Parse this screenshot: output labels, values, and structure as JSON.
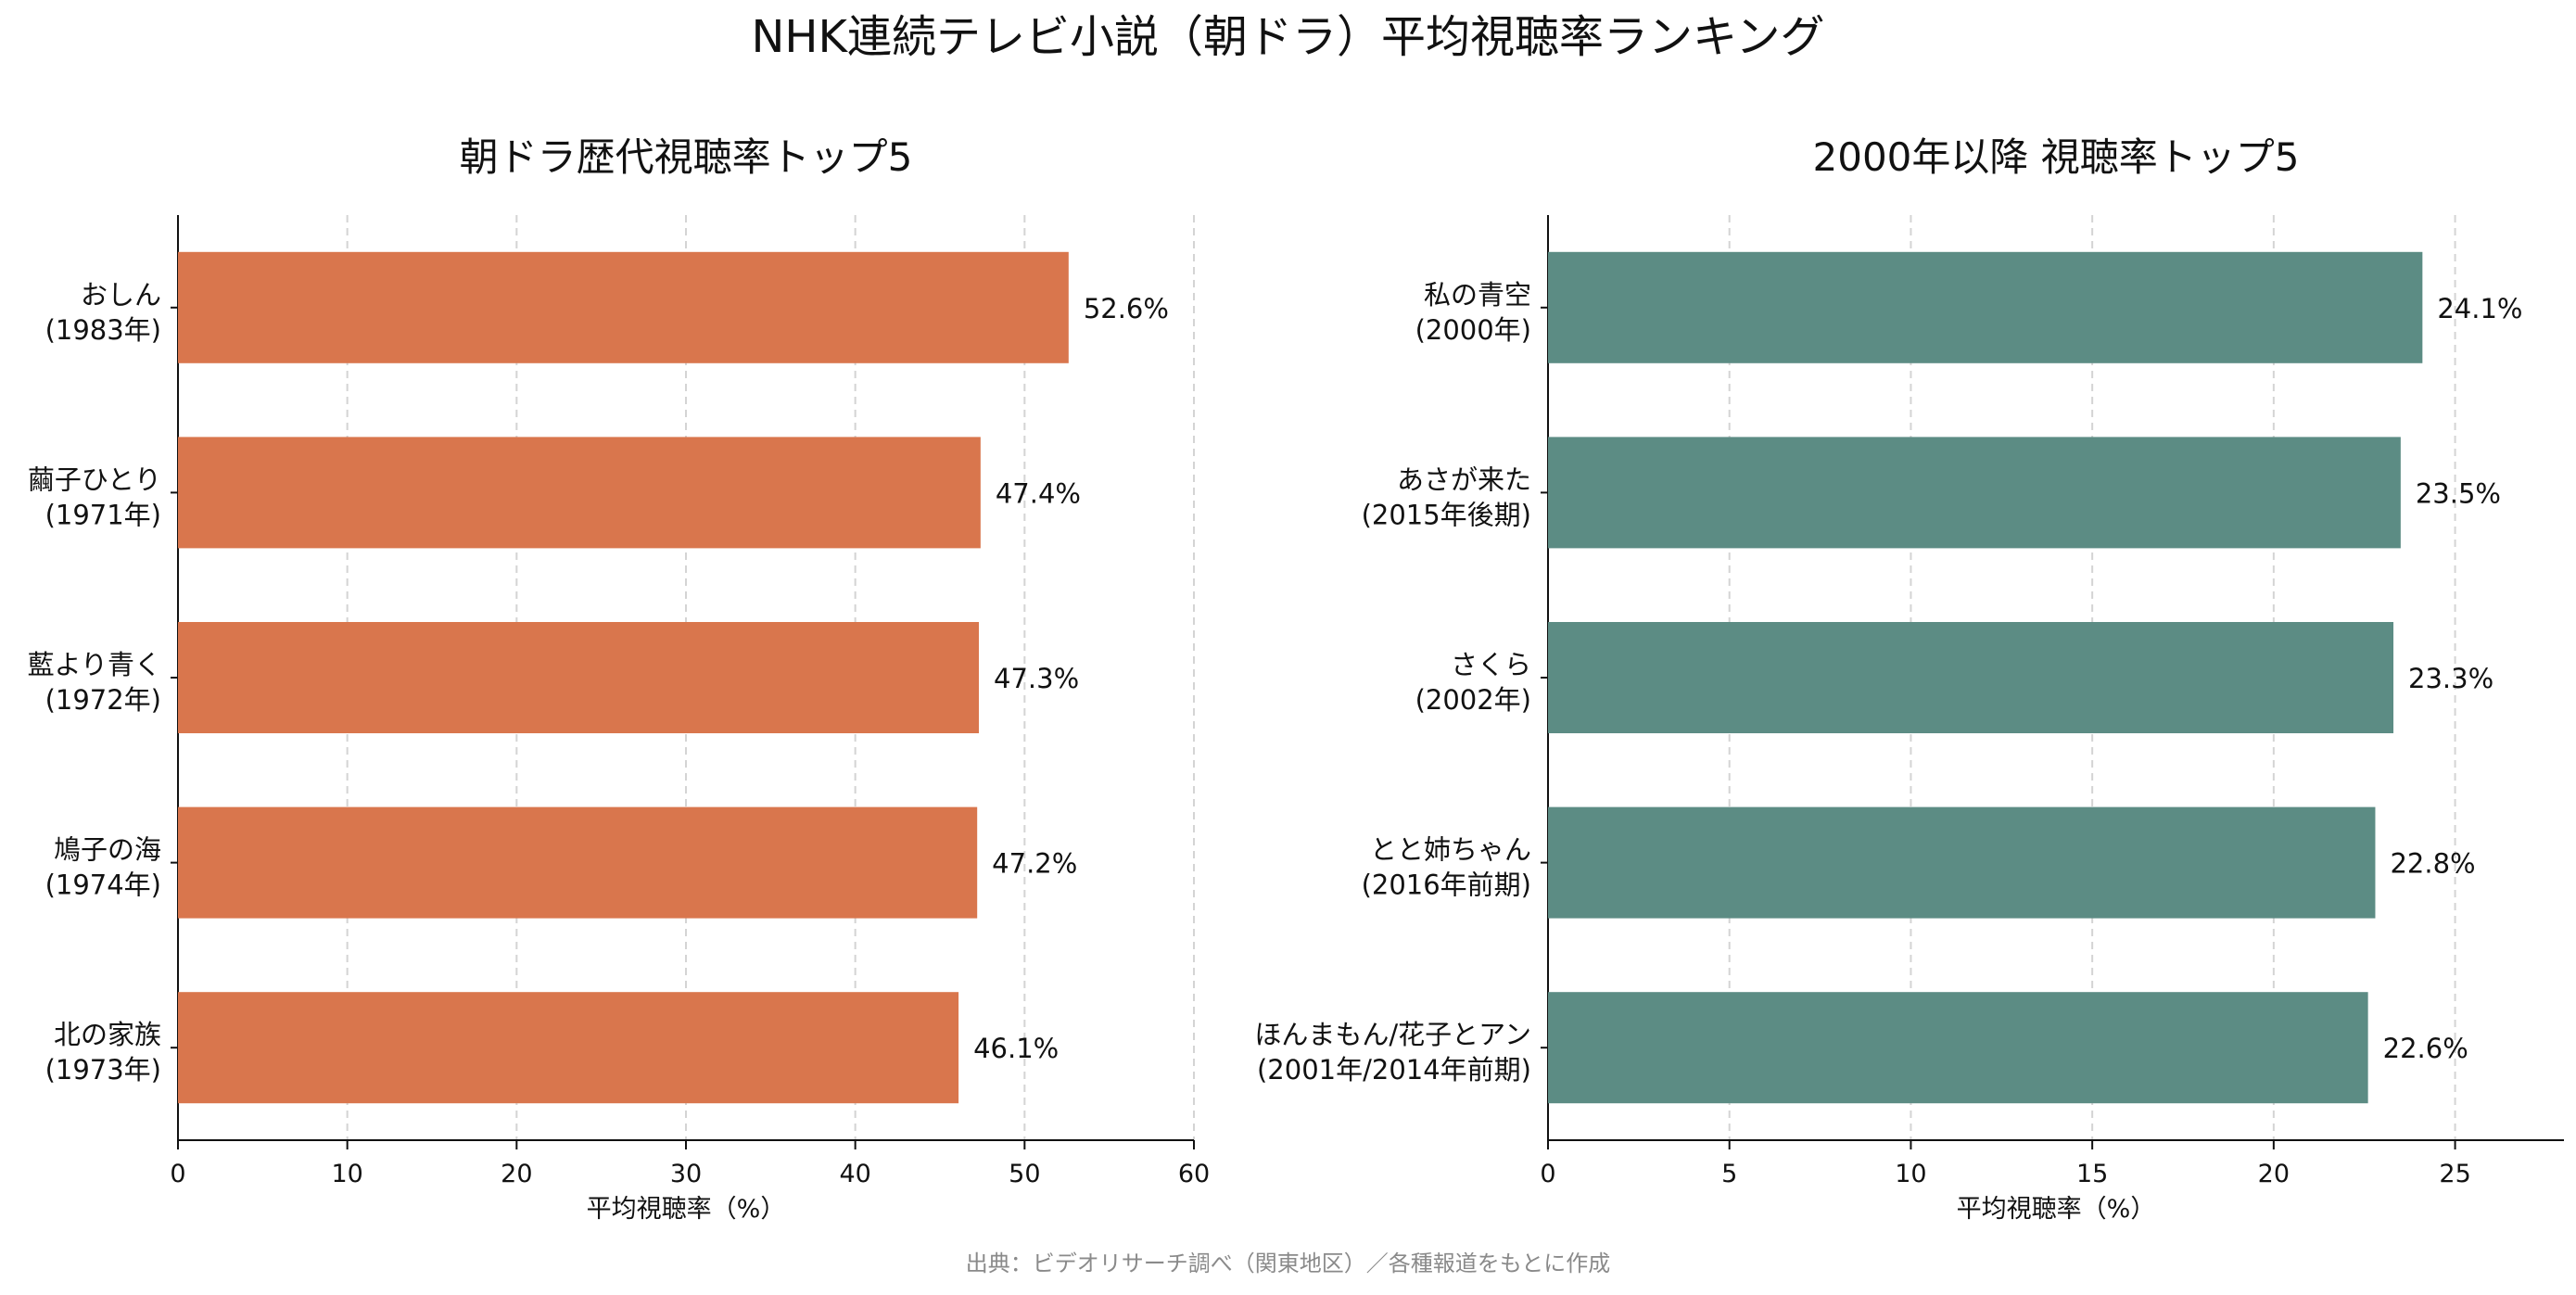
{
  "title": "NHK連続テレビ小説（朝ドラ）平均視聴率ランキング",
  "source": "出典：ビデオリサーチ調べ（関東地区）／各種報道をもとに作成",
  "chart_data": [
    {
      "type": "bar",
      "orientation": "horizontal",
      "title": "朝ドラ歴代視聴率トップ5",
      "xlabel": "平均視聴率（%）",
      "xlim": [
        0,
        60
      ],
      "xticks": [
        0,
        10,
        20,
        30,
        40,
        50,
        60
      ],
      "color": "#d9764d",
      "grid": "x-dashed",
      "categories": [
        {
          "name": "おしん",
          "year": "(1983年)"
        },
        {
          "name": "繭子ひとり",
          "year": "(1971年)"
        },
        {
          "name": "藍より青く",
          "year": "(1972年)"
        },
        {
          "name": "鳩子の海",
          "year": "(1974年)"
        },
        {
          "name": "北の家族",
          "year": "(1973年)"
        }
      ],
      "values": [
        52.6,
        47.4,
        47.3,
        47.2,
        46.1
      ],
      "value_labels": [
        "52.6%",
        "47.4%",
        "47.3%",
        "47.2%",
        "46.1%"
      ]
    },
    {
      "type": "bar",
      "orientation": "horizontal",
      "title": "2000年以降 視聴率トップ5",
      "xlabel": "平均視聴率（%）",
      "xlim": [
        0,
        28
      ],
      "xticks": [
        0,
        5,
        10,
        15,
        20,
        25
      ],
      "color": "#5c8c84",
      "grid": "x-dashed",
      "categories": [
        {
          "name": "私の青空",
          "year": "(2000年)"
        },
        {
          "name": "あさが来た",
          "year": "(2015年後期)"
        },
        {
          "name": "さくら",
          "year": "(2002年)"
        },
        {
          "name": "とと姉ちゃん",
          "year": "(2016年前期)"
        },
        {
          "name": "ほんまもん/花子とアン",
          "year": "(2001年/2014年前期)"
        }
      ],
      "values": [
        24.1,
        23.5,
        23.3,
        22.8,
        22.6
      ],
      "value_labels": [
        "24.1%",
        "23.5%",
        "23.3%",
        "22.8%",
        "22.6%"
      ]
    }
  ]
}
